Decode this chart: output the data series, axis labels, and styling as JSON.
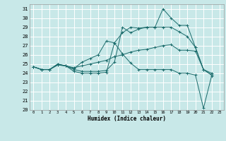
{
  "xlabel": "Humidex (Indice chaleur)",
  "xlim": [
    -0.5,
    23.5
  ],
  "ylim": [
    20,
    31.5
  ],
  "yticks": [
    20,
    21,
    22,
    23,
    24,
    25,
    26,
    27,
    28,
    29,
    30,
    31
  ],
  "xticks": [
    0,
    1,
    2,
    3,
    4,
    5,
    6,
    7,
    8,
    9,
    10,
    11,
    12,
    13,
    14,
    15,
    16,
    17,
    18,
    19,
    20,
    21,
    22,
    23
  ],
  "bg_color": "#c8e8e8",
  "grid_color": "#ffffff",
  "line_color": "#1a6b6b",
  "series": [
    [
      24.7,
      24.4,
      24.4,
      24.9,
      24.8,
      24.4,
      24.2,
      24.2,
      24.2,
      24.3,
      25.2,
      29.0,
      28.4,
      28.8,
      29.0,
      29.0,
      31.0,
      30.0,
      29.2,
      29.2,
      26.8,
      24.4,
      23.8
    ],
    [
      24.7,
      24.4,
      24.4,
      25.0,
      24.8,
      24.2,
      24.0,
      24.0,
      24.0,
      24.1,
      27.3,
      26.1,
      25.1,
      24.4,
      24.4,
      24.4,
      24.4,
      24.4,
      24.0,
      24.0,
      23.8,
      20.2,
      23.7
    ],
    [
      24.7,
      24.4,
      24.4,
      25.0,
      24.8,
      24.6,
      24.8,
      25.0,
      25.2,
      25.4,
      25.8,
      26.0,
      26.3,
      26.5,
      26.6,
      26.8,
      27.0,
      27.1,
      26.5,
      26.5,
      26.4,
      24.4,
      24.0
    ],
    [
      24.7,
      24.4,
      24.4,
      24.9,
      24.8,
      24.5,
      25.2,
      25.6,
      26.0,
      27.5,
      27.3,
      28.4,
      29.0,
      28.9,
      29.0,
      29.0,
      29.0,
      29.0,
      28.5,
      28.0,
      26.8,
      24.4,
      23.8
    ]
  ]
}
